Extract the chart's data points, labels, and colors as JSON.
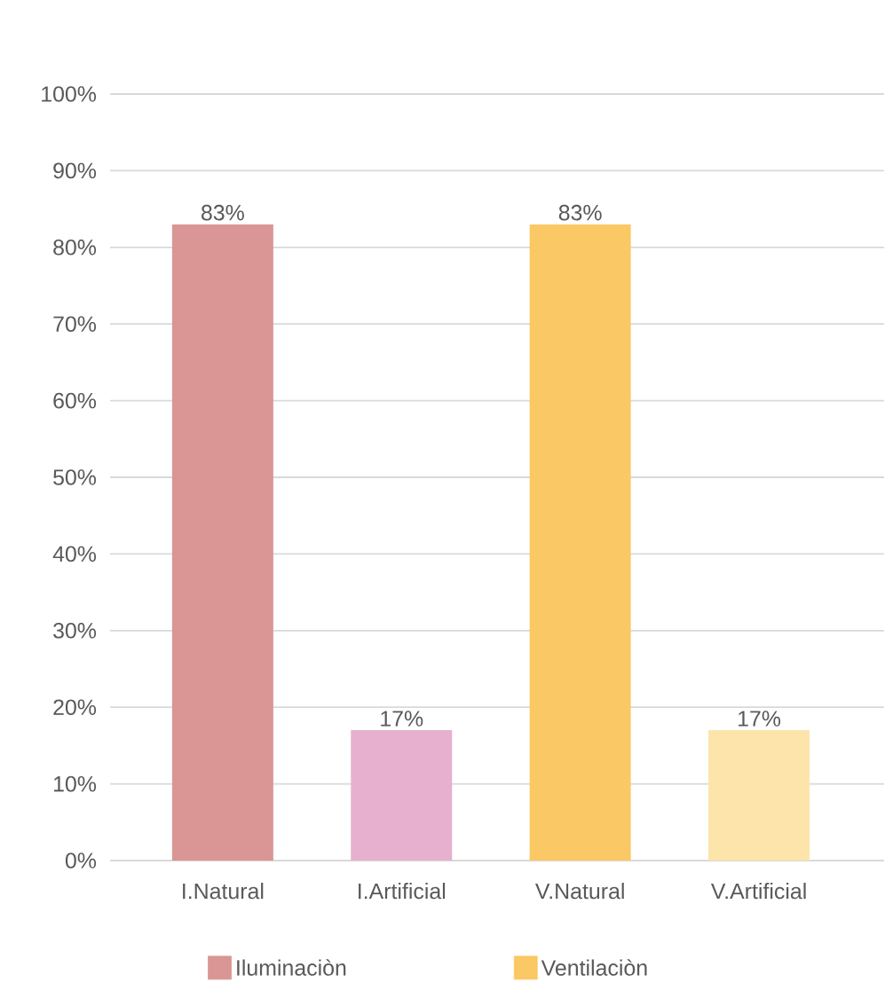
{
  "chart_data": {
    "type": "bar",
    "categories": [
      "I.Natural",
      "I.Artificial",
      "V.Natural",
      "V.Artificial"
    ],
    "series": [
      {
        "name": "Iluminaciòn",
        "color": "#d99694",
        "colors": [
          "#d99694",
          "#e6b0ce",
          null,
          null
        ],
        "values": [
          83,
          17,
          null,
          null
        ],
        "value_labels": [
          "83%",
          "17%",
          null,
          null
        ]
      },
      {
        "name": "Ventilaciòn",
        "color": "#fac864",
        "colors": [
          null,
          null,
          "#fac864",
          "#fde4aa"
        ],
        "values": [
          null,
          null,
          83,
          17
        ],
        "value_labels": [
          null,
          null,
          "83%",
          "17%"
        ]
      }
    ],
    "ylim": [
      0,
      100
    ],
    "yticks": [
      {
        "value": 0,
        "label": "0%"
      },
      {
        "value": 10,
        "label": "10%"
      },
      {
        "value": 20,
        "label": "20%"
      },
      {
        "value": 30,
        "label": "30%"
      },
      {
        "value": 40,
        "label": "40%"
      },
      {
        "value": 50,
        "label": "50%"
      },
      {
        "value": 60,
        "label": "60%"
      },
      {
        "value": 70,
        "label": "70%"
      },
      {
        "value": 80,
        "label": "80%"
      },
      {
        "value": 90,
        "label": "90%"
      },
      {
        "value": 100,
        "label": "100%"
      }
    ],
    "grid": "y",
    "legend": "bottom"
  }
}
